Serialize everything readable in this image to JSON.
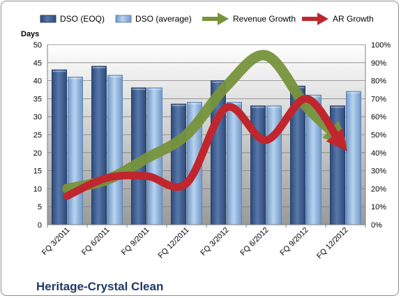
{
  "chart_data": {
    "type": "bar",
    "categories": [
      "FQ 3/2011",
      "FQ 6/2011",
      "FQ 9/2011",
      "FQ 12/2011",
      "FQ 3/2012",
      "FQ 6/2012",
      "FQ 9/2012",
      "FQ 12/2012"
    ],
    "series": [
      {
        "name": "DSO (EOQ)",
        "type": "bar",
        "axis": "left",
        "color": "#3f5f8f",
        "values": [
          43,
          44,
          38,
          33.5,
          40,
          33,
          38.5,
          33
        ]
      },
      {
        "name": "DSO (average)",
        "type": "bar",
        "axis": "left",
        "color": "#8fb4dc",
        "values": [
          41,
          41.5,
          38,
          34,
          34,
          33,
          36,
          37
        ]
      },
      {
        "name": "Revenue Growth",
        "type": "line",
        "axis": "right",
        "color": "#77933c",
        "values": [
          0.2,
          0.25,
          0.37,
          0.5,
          0.77,
          0.94,
          0.66,
          0.45
        ]
      },
      {
        "name": "AR Growth",
        "type": "line",
        "axis": "right",
        "color": "#c0262d",
        "values": [
          0.16,
          0.26,
          0.27,
          0.23,
          0.65,
          0.47,
          0.7,
          0.42
        ]
      }
    ],
    "ylabel": "Days",
    "ylim": [
      0,
      50
    ],
    "y_ticks": [
      0,
      5,
      10,
      15,
      20,
      25,
      30,
      35,
      40,
      45,
      50
    ],
    "y2lim": [
      0,
      1
    ],
    "y2_ticks": [
      "0%",
      "10%",
      "20%",
      "30%",
      "40%",
      "50%",
      "60%",
      "70%",
      "80%",
      "90%",
      "100%"
    ],
    "legend_position": "top",
    "grid": true
  },
  "footer": {
    "company": "Heritage-Crystal Clean"
  }
}
